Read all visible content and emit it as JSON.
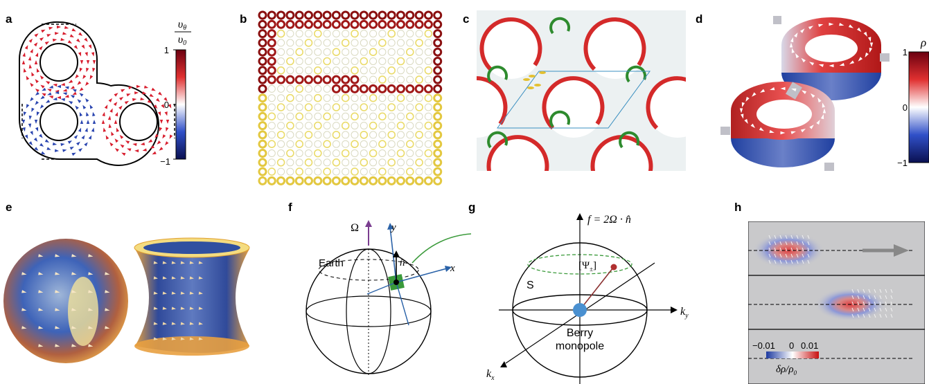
{
  "panels": {
    "a": {
      "label": "a",
      "cbar_num": "υ",
      "cbar_num_sub": "θ",
      "cbar_den": "υ",
      "cbar_den_sub": "0",
      "ticks": [
        "1",
        "0",
        "−1"
      ]
    },
    "b": {
      "label": "b"
    },
    "c": {
      "label": "c"
    },
    "d": {
      "label": "d",
      "cbar_title": "ρ",
      "ticks": [
        "1",
        "0",
        "−1"
      ]
    },
    "e": {
      "label": "e"
    },
    "f": {
      "label": "f",
      "omega": "Ω",
      "y_axis": "y",
      "x_axis": "x",
      "earth": "Earth",
      "n_hat": "n̂"
    },
    "g": {
      "label": "g",
      "f_eq": "f = 2Ω · n̂",
      "S": "S",
      "psi": "[Ψ",
      "psi_sub": "±",
      "psi_close": "]",
      "ky": "k",
      "ky_sub": "y",
      "kx": "k",
      "kx_sub": "x",
      "berry1": "Berry",
      "berry2": "monopole"
    },
    "h": {
      "label": "h",
      "ticks": [
        "−0.01",
        "0",
        "0.01"
      ],
      "cbar_label": "δρ/ρ",
      "cbar_label_sub": "0"
    }
  },
  "colors": {
    "red": "#c8102e",
    "blue": "#1f3f9f",
    "green": "#2e8b2e",
    "yellow": "#e6cf3a",
    "darkred": "#7a0c0c"
  }
}
